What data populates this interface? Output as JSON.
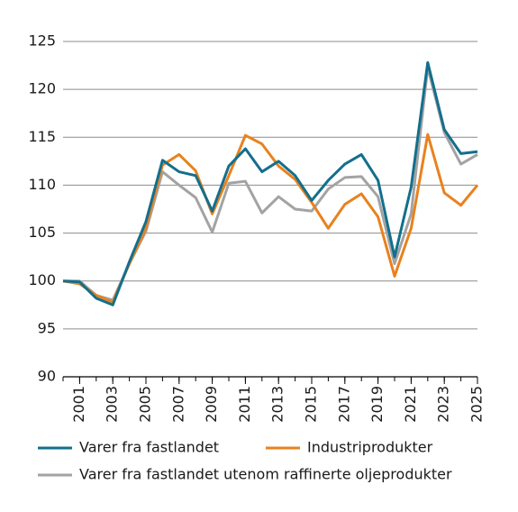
{
  "chart_data": {
    "type": "line",
    "x": [
      2000,
      2001,
      2002,
      2003,
      2004,
      2005,
      2006,
      2007,
      2008,
      2009,
      2010,
      2011,
      2012,
      2013,
      2014,
      2015,
      2016,
      2017,
      2018,
      2019,
      2020,
      2021,
      2022,
      2023,
      2024,
      2025
    ],
    "xlim": [
      2000,
      2025
    ],
    "xticks": [
      2001,
      2003,
      2005,
      2007,
      2009,
      2011,
      2013,
      2015,
      2017,
      2019,
      2021,
      2023,
      2025
    ],
    "ylim": [
      90,
      125
    ],
    "yticks": [
      90,
      95,
      100,
      105,
      110,
      115,
      120,
      125
    ],
    "grid": true,
    "legend": "bottom",
    "series": [
      {
        "name": "Varer fra fastlandet",
        "color": "#136f8c",
        "values": [
          100,
          99.9,
          98.2,
          97.5,
          102,
          106.2,
          112.6,
          111.4,
          111,
          107.3,
          112,
          113.8,
          111.4,
          112.5,
          111,
          108.4,
          110.5,
          112.2,
          113.2,
          110.5,
          102.5,
          109.8,
          122.8,
          115.8,
          113.3,
          113.5
        ]
      },
      {
        "name": "Industriprodukter",
        "color": "#e8821e",
        "values": [
          100,
          99.7,
          98.5,
          97.8,
          101.8,
          105.5,
          112.1,
          113.2,
          111.5,
          107,
          111,
          115.2,
          114.3,
          112,
          110.6,
          108.2,
          105.5,
          108,
          109.1,
          106.7,
          100.5,
          105.5,
          115.3,
          109.2,
          107.9,
          110
        ]
      },
      {
        "name": "Varer fra fastlandet utenom raffinerte oljeprodukter",
        "color": "#a3a3a3",
        "values": [
          100,
          100,
          98.5,
          98,
          101.8,
          105.2,
          111.4,
          110,
          108.7,
          105.1,
          110.2,
          110.4,
          107.1,
          108.8,
          107.5,
          107.3,
          109.6,
          110.8,
          110.9,
          108.8,
          101.8,
          107,
          122.3,
          115.5,
          112.2,
          113.2
        ]
      }
    ]
  }
}
